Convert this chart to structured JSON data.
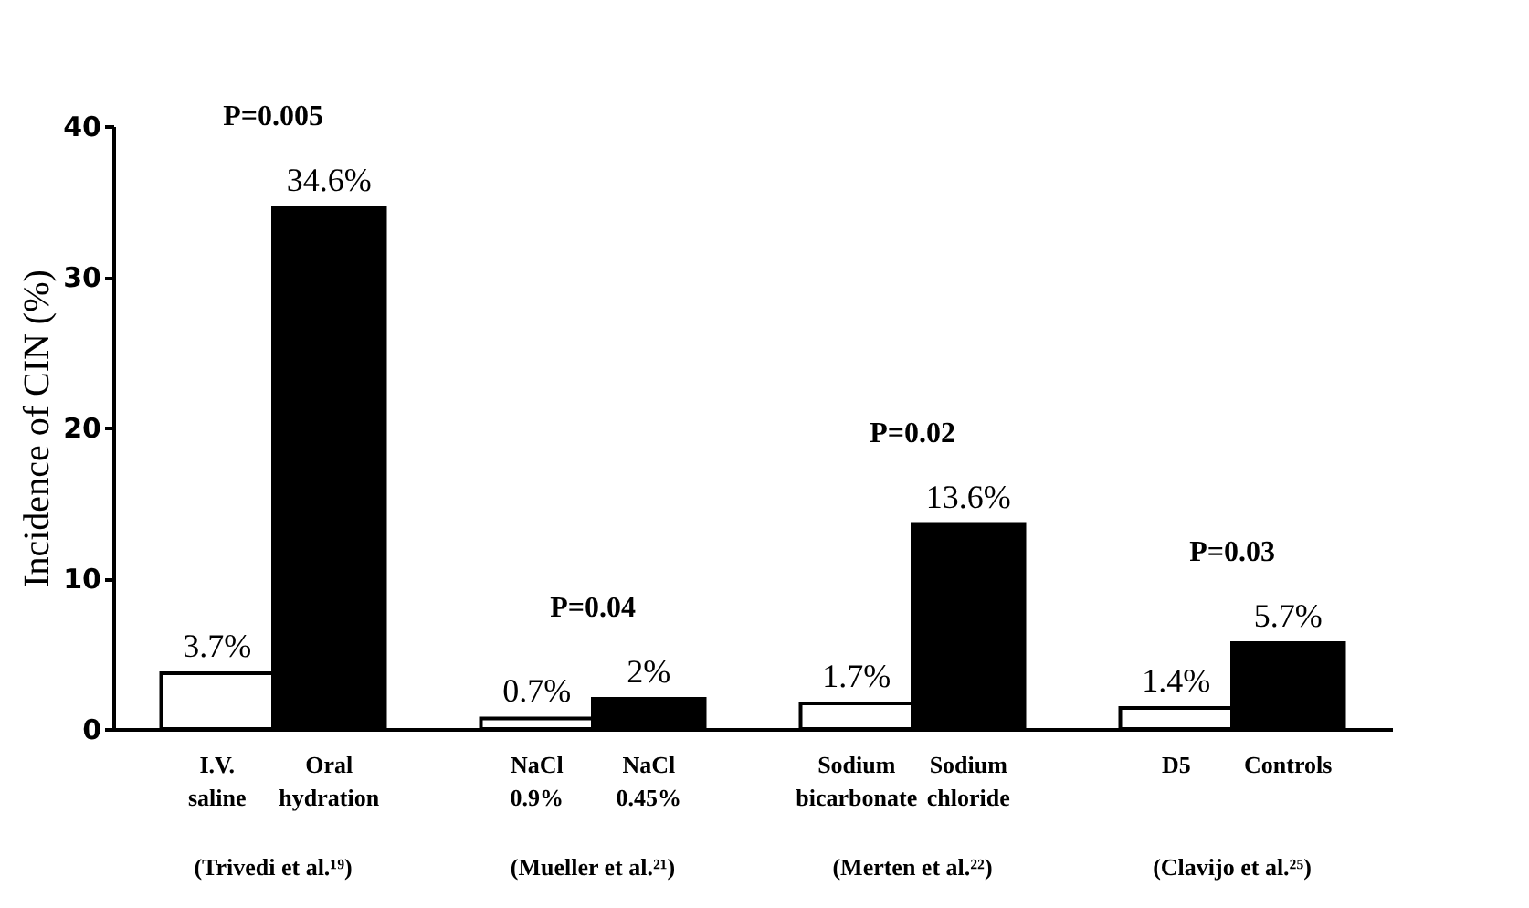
{
  "chart_data": {
    "type": "bar",
    "ylabel": "Incidence of CIN (%)",
    "categories": [
      "I.V. saline",
      "Oral hydration",
      "NaCl 0.9%",
      "NaCl 0.45%",
      "Sodium bicarbonate",
      "Sodium chloride",
      "D5",
      "Controls"
    ],
    "values": [
      3.7,
      34.6,
      0.7,
      2,
      1.7,
      13.6,
      1.4,
      5.7
    ],
    "value_labels": [
      "3.7%",
      "34.6%",
      "0.7%",
      "2%",
      "1.7%",
      "13.6%",
      "1.4%",
      "5.7%"
    ],
    "colors": [
      "#ffffff",
      "#000000",
      "#ffffff",
      "#000000",
      "#ffffff",
      "#000000",
      "#ffffff",
      "#000000"
    ],
    "ylim": [
      0,
      40
    ],
    "yticks": [
      0,
      10,
      20,
      30,
      40
    ],
    "grid": false,
    "annotations": [
      "P=0.005",
      "P=0.04",
      "P=0.02",
      "P=0.03",
      "(Trivedi et al.¹⁹)",
      "(Mueller et al.²¹)",
      "(Merten et al.²²)",
      "(Clavijo et al.²⁵)"
    ]
  }
}
